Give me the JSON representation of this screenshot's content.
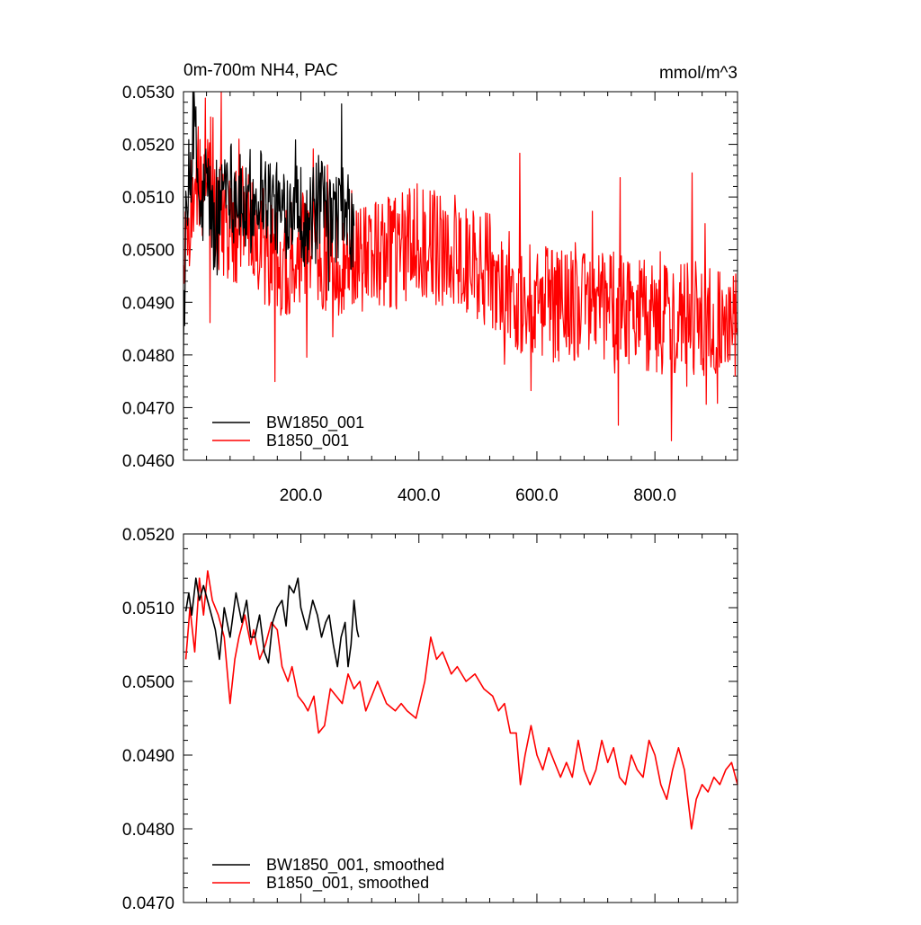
{
  "chart_data": [
    {
      "type": "line",
      "title_left": "0m-700m NH4, PAC",
      "title_right": "mmol/m^3",
      "xlim": [
        1,
        940
      ],
      "ylim": [
        0.046,
        0.053
      ],
      "yticks": [
        "0.0460",
        "0.0470",
        "0.0480",
        "0.0490",
        "0.0500",
        "0.0510",
        "0.0520",
        "0.0530"
      ],
      "ytick_values": [
        0.046,
        0.047,
        0.048,
        0.049,
        0.05,
        0.051,
        0.052,
        0.053
      ],
      "xticks": [
        "200.0",
        "400.0",
        "600.0",
        "800.0"
      ],
      "xtick_values": [
        200,
        400,
        600,
        800
      ],
      "grid": false,
      "legend_position": "bottom-left",
      "series": [
        {
          "name": "BW1850_001",
          "color": "#000000",
          "x_start": 1,
          "x_end": 290,
          "points": [
            [
              1,
              0.0487
            ],
            [
              10,
              0.0512
            ],
            [
              20,
              0.0523
            ],
            [
              30,
              0.0505
            ],
            [
              40,
              0.0514
            ],
            [
              55,
              0.0501
            ],
            [
              70,
              0.0515
            ],
            [
              90,
              0.0511
            ],
            [
              110,
              0.0506
            ],
            [
              130,
              0.0512
            ],
            [
              150,
              0.0509
            ],
            [
              170,
              0.0506
            ],
            [
              190,
              0.0511
            ],
            [
              210,
              0.0504
            ],
            [
              230,
              0.0509
            ],
            [
              250,
              0.0505
            ],
            [
              270,
              0.0508
            ],
            [
              290,
              0.0503
            ]
          ]
        },
        {
          "name": "B1850_001",
          "color": "#ff0000",
          "x_start": 1,
          "x_end": 940,
          "points": [
            [
              1,
              0.0496
            ],
            [
              20,
              0.0514
            ],
            [
              40,
              0.0512
            ],
            [
              60,
              0.0506
            ],
            [
              80,
              0.0502
            ],
            [
              100,
              0.0506
            ],
            [
              130,
              0.0502
            ],
            [
              160,
              0.0497
            ],
            [
              200,
              0.05
            ],
            [
              240,
              0.0499
            ],
            [
              280,
              0.0497
            ],
            [
              320,
              0.05
            ],
            [
              360,
              0.0499
            ],
            [
              400,
              0.0502
            ],
            [
              440,
              0.05
            ],
            [
              480,
              0.0499
            ],
            [
              520,
              0.0496
            ],
            [
              560,
              0.0492
            ],
            [
              600,
              0.049
            ],
            [
              640,
              0.0489
            ],
            [
              680,
              0.049
            ],
            [
              720,
              0.0489
            ],
            [
              760,
              0.0488
            ],
            [
              800,
              0.0487
            ],
            [
              840,
              0.0487
            ],
            [
              880,
              0.0487
            ],
            [
              920,
              0.0486
            ],
            [
              940,
              0.0485
            ]
          ]
        }
      ]
    },
    {
      "type": "line",
      "xlim": [
        1,
        940
      ],
      "ylim": [
        0.047,
        0.052
      ],
      "yticks": [
        "0.0470",
        "0.0480",
        "0.0490",
        "0.0500",
        "0.0510",
        "0.0520"
      ],
      "ytick_values": [
        0.047,
        0.048,
        0.049,
        0.05,
        0.051,
        0.052
      ],
      "grid": false,
      "legend_position": "bottom-left",
      "series": [
        {
          "name": "BW1850_001, smoothed",
          "color": "#000000",
          "points": [
            [
              5,
              0.05095
            ],
            [
              10,
              0.0512
            ],
            [
              15,
              0.0509
            ],
            [
              22,
              0.0514
            ],
            [
              28,
              0.0511
            ],
            [
              35,
              0.0513
            ],
            [
              45,
              0.051
            ],
            [
              55,
              0.0507
            ],
            [
              62,
              0.0503
            ],
            [
              70,
              0.051
            ],
            [
              80,
              0.0506
            ],
            [
              90,
              0.0512
            ],
            [
              100,
              0.0508
            ],
            [
              108,
              0.0511
            ],
            [
              115,
              0.0506
            ],
            [
              122,
              0.0506
            ],
            [
              130,
              0.0509
            ],
            [
              138,
              0.0504
            ],
            [
              145,
              0.05025
            ],
            [
              152,
              0.0508
            ],
            [
              160,
              0.051
            ],
            [
              168,
              0.0511
            ],
            [
              175,
              0.05075
            ],
            [
              180,
              0.0513
            ],
            [
              188,
              0.0512
            ],
            [
              195,
              0.0514
            ],
            [
              200,
              0.051
            ],
            [
              210,
              0.0507
            ],
            [
              220,
              0.0511
            ],
            [
              228,
              0.0509
            ],
            [
              235,
              0.0506
            ],
            [
              242,
              0.0508
            ],
            [
              248,
              0.0509
            ],
            [
              255,
              0.0505
            ],
            [
              262,
              0.0502
            ],
            [
              268,
              0.0506
            ],
            [
              275,
              0.0508
            ],
            [
              280,
              0.0502
            ],
            [
              285,
              0.0505
            ],
            [
              290,
              0.0511
            ],
            [
              295,
              0.0507
            ],
            [
              298,
              0.0506
            ]
          ]
        },
        {
          "name": "B1850_001, smoothed",
          "color": "#ff0000",
          "points": [
            [
              5,
              0.0503
            ],
            [
              12,
              0.051
            ],
            [
              20,
              0.0504
            ],
            [
              28,
              0.0514
            ],
            [
              35,
              0.0509
            ],
            [
              42,
              0.0515
            ],
            [
              50,
              0.0511
            ],
            [
              60,
              0.0509
            ],
            [
              70,
              0.0506
            ],
            [
              80,
              0.0497
            ],
            [
              88,
              0.0503
            ],
            [
              95,
              0.0506
            ],
            [
              105,
              0.0509
            ],
            [
              115,
              0.0505
            ],
            [
              120,
              0.0507
            ],
            [
              130,
              0.0503
            ],
            [
              140,
              0.0505
            ],
            [
              150,
              0.0508
            ],
            [
              160,
              0.0507
            ],
            [
              168,
              0.0502
            ],
            [
              178,
              0.05
            ],
            [
              185,
              0.0502
            ],
            [
              195,
              0.0498
            ],
            [
              205,
              0.0497
            ],
            [
              212,
              0.0496
            ],
            [
              222,
              0.0498
            ],
            [
              230,
              0.0493
            ],
            [
              240,
              0.0494
            ],
            [
              250,
              0.0499
            ],
            [
              260,
              0.0498
            ],
            [
              270,
              0.0497
            ],
            [
              280,
              0.0501
            ],
            [
              290,
              0.0499
            ],
            [
              300,
              0.05
            ],
            [
              310,
              0.0496
            ],
            [
              320,
              0.0498
            ],
            [
              330,
              0.05
            ],
            [
              345,
              0.0497
            ],
            [
              360,
              0.0496
            ],
            [
              370,
              0.0497
            ],
            [
              380,
              0.0496
            ],
            [
              395,
              0.0495
            ],
            [
              410,
              0.05
            ],
            [
              420,
              0.0506
            ],
            [
              430,
              0.0503
            ],
            [
              440,
              0.0504
            ],
            [
              455,
              0.0501
            ],
            [
              465,
              0.0502
            ],
            [
              480,
              0.05
            ],
            [
              495,
              0.0501
            ],
            [
              510,
              0.0499
            ],
            [
              525,
              0.0498
            ],
            [
              535,
              0.0496
            ],
            [
              545,
              0.0497
            ],
            [
              555,
              0.0493
            ],
            [
              565,
              0.0493
            ],
            [
              572,
              0.0486
            ],
            [
              580,
              0.049
            ],
            [
              590,
              0.0494
            ],
            [
              600,
              0.049
            ],
            [
              610,
              0.0488
            ],
            [
              620,
              0.0491
            ],
            [
              630,
              0.0489
            ],
            [
              640,
              0.0487
            ],
            [
              650,
              0.0489
            ],
            [
              660,
              0.0487
            ],
            [
              670,
              0.0492
            ],
            [
              680,
              0.0488
            ],
            [
              690,
              0.0486
            ],
            [
              700,
              0.0488
            ],
            [
              710,
              0.0492
            ],
            [
              720,
              0.0489
            ],
            [
              730,
              0.0491
            ],
            [
              740,
              0.0487
            ],
            [
              750,
              0.0486
            ],
            [
              760,
              0.049
            ],
            [
              770,
              0.0488
            ],
            [
              780,
              0.0487
            ],
            [
              790,
              0.0492
            ],
            [
              800,
              0.049
            ],
            [
              810,
              0.0486
            ],
            [
              820,
              0.0484
            ],
            [
              830,
              0.0488
            ],
            [
              840,
              0.0491
            ],
            [
              850,
              0.0488
            ],
            [
              862,
              0.048
            ],
            [
              870,
              0.0484
            ],
            [
              880,
              0.0486
            ],
            [
              890,
              0.0485
            ],
            [
              900,
              0.0487
            ],
            [
              910,
              0.0486
            ],
            [
              920,
              0.0488
            ],
            [
              930,
              0.0489
            ],
            [
              940,
              0.0486
            ]
          ]
        }
      ]
    }
  ]
}
